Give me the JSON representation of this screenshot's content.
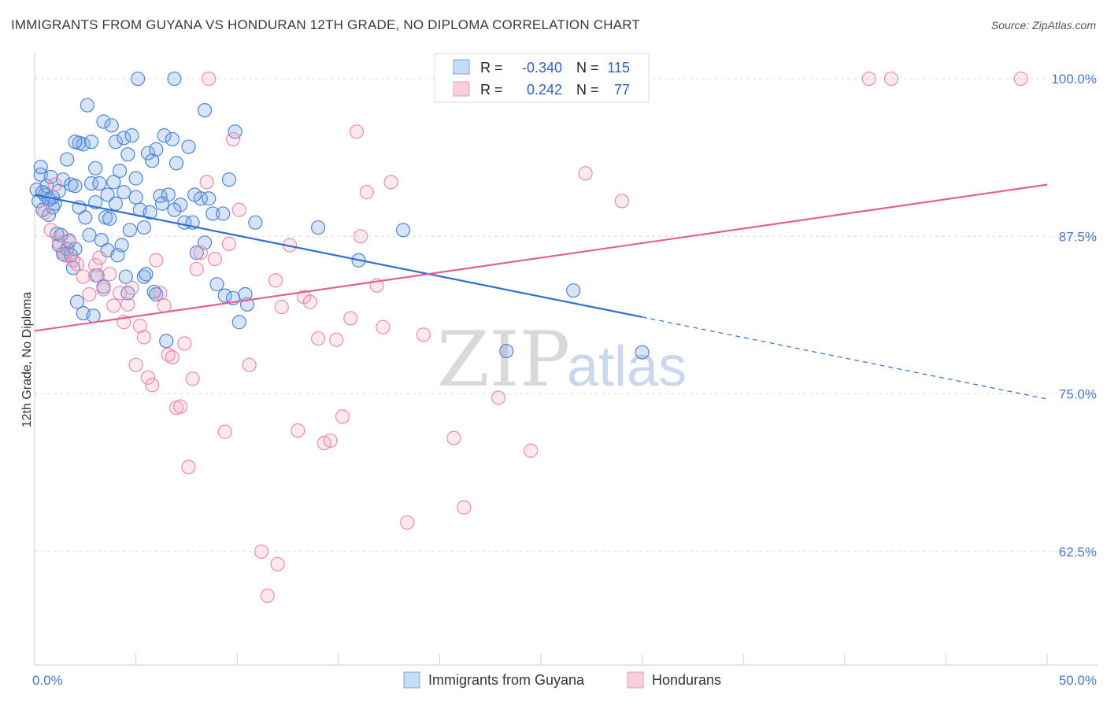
{
  "title": "IMMIGRANTS FROM GUYANA VS HONDURAN 12TH GRADE, NO DIPLOMA CORRELATION CHART",
  "source": "Source: ZipAtlas.com",
  "watermark": {
    "zip": "ZIP",
    "atlas": "atlas"
  },
  "legend": {
    "rows": [
      {
        "r_label": "R =",
        "r_value": "-0.340",
        "n_label": "N =",
        "n_value": "115",
        "color": "#7aa6e0"
      },
      {
        "r_label": "R =",
        "r_value": "0.242",
        "n_label": "N =",
        "n_value": "77",
        "color": "#f09ab8"
      }
    ]
  },
  "bottom_legend": [
    {
      "label": "Immigrants from Guyana",
      "color": "#7aa6e0"
    },
    {
      "label": "Hondurans",
      "color": "#f09ab8"
    }
  ],
  "chart_data": {
    "type": "scatter",
    "title": "IMMIGRANTS FROM GUYANA VS HONDURAN 12TH GRADE, NO DIPLOMA CORRELATION CHART",
    "xlabel": "",
    "ylabel": "12th Grade, No Diploma",
    "xlim": [
      0,
      50
    ],
    "ylim": [
      53.5,
      102
    ],
    "x_tick_labels": [
      {
        "value": 0,
        "label": "0.0%"
      },
      {
        "value": 50,
        "label": "50.0%"
      }
    ],
    "y_tick_labels": [
      {
        "value": 100,
        "label": "100.0%"
      },
      {
        "value": 87.5,
        "label": "87.5%"
      },
      {
        "value": 75,
        "label": "75.0%"
      },
      {
        "value": 62.5,
        "label": "62.5%"
      }
    ],
    "grid": true,
    "legend_position": "top-center",
    "series": [
      {
        "name": "Immigrants from Guyana",
        "color": "#7aa6e0",
        "trend": {
          "x0": 0,
          "y0": 90.8,
          "x1": 30,
          "y1": 81.1,
          "dashed_to_x": 50,
          "dashed_to_y": 74.6,
          "color": "#2f6fcf"
        },
        "points": [
          [
            0.1,
            91.2
          ],
          [
            0.2,
            90.3
          ],
          [
            0.3,
            92.4
          ],
          [
            0.4,
            89.6
          ],
          [
            0.5,
            90.8
          ],
          [
            0.6,
            91.5
          ],
          [
            0.7,
            89.2
          ],
          [
            0.8,
            92.2
          ],
          [
            0.9,
            89.8
          ],
          [
            1.0,
            90.1
          ],
          [
            1.1,
            87.7
          ],
          [
            1.2,
            86.8
          ],
          [
            1.3,
            87.6
          ],
          [
            1.4,
            86.1
          ],
          [
            1.5,
            86.0
          ],
          [
            1.6,
            86.5
          ],
          [
            1.7,
            87.1
          ],
          [
            1.8,
            86.0
          ],
          [
            1.9,
            85.0
          ],
          [
            2.0,
            86.5
          ],
          [
            0.3,
            93.0
          ],
          [
            0.4,
            91.0
          ],
          [
            0.7,
            90.4
          ],
          [
            0.9,
            90.6
          ],
          [
            1.2,
            91.1
          ],
          [
            1.4,
            92.0
          ],
          [
            1.6,
            93.6
          ],
          [
            1.8,
            91.6
          ],
          [
            2.0,
            91.5
          ],
          [
            2.2,
            94.9
          ],
          [
            2.4,
            94.8
          ],
          [
            2.6,
            97.9
          ],
          [
            2.8,
            91.7
          ],
          [
            3.0,
            92.9
          ],
          [
            3.2,
            91.7
          ],
          [
            3.4,
            96.6
          ],
          [
            3.6,
            90.8
          ],
          [
            3.8,
            96.3
          ],
          [
            4.0,
            95.0
          ],
          [
            4.2,
            92.7
          ],
          [
            4.4,
            95.3
          ],
          [
            4.6,
            94.0
          ],
          [
            4.8,
            95.5
          ],
          [
            5.0,
            92.1
          ],
          [
            5.2,
            89.6
          ],
          [
            5.4,
            88.2
          ],
          [
            5.6,
            94.1
          ],
          [
            5.8,
            93.5
          ],
          [
            6.0,
            94.4
          ],
          [
            6.2,
            90.7
          ],
          [
            6.4,
            95.5
          ],
          [
            6.6,
            90.8
          ],
          [
            6.8,
            95.2
          ],
          [
            7.0,
            93.3
          ],
          [
            7.2,
            90.0
          ],
          [
            7.4,
            88.6
          ],
          [
            7.6,
            94.6
          ],
          [
            7.8,
            88.6
          ],
          [
            8.0,
            86.2
          ],
          [
            8.2,
            90.5
          ],
          [
            8.4,
            97.5
          ],
          [
            8.8,
            89.3
          ],
          [
            9.0,
            83.7
          ],
          [
            9.4,
            82.8
          ],
          [
            9.6,
            92.0
          ],
          [
            9.9,
            95.8
          ],
          [
            10.1,
            80.7
          ],
          [
            10.5,
            82.1
          ],
          [
            10.9,
            88.6
          ],
          [
            2.2,
            89.8
          ],
          [
            2.5,
            89.0
          ],
          [
            2.7,
            87.6
          ],
          [
            3.0,
            90.2
          ],
          [
            3.3,
            87.2
          ],
          [
            3.5,
            89.0
          ],
          [
            3.7,
            88.9
          ],
          [
            4.0,
            90.1
          ],
          [
            4.3,
            86.8
          ],
          [
            4.5,
            84.3
          ],
          [
            4.7,
            88.0
          ],
          [
            5.1,
            100.0
          ],
          [
            5.4,
            84.3
          ],
          [
            5.9,
            83.1
          ],
          [
            6.5,
            79.2
          ],
          [
            6.9,
            100.0
          ],
          [
            8.4,
            87.0
          ],
          [
            8.6,
            90.5
          ],
          [
            9.3,
            89.3
          ],
          [
            9.8,
            82.6
          ],
          [
            10.4,
            82.9
          ],
          [
            2.1,
            82.3
          ],
          [
            2.4,
            81.4
          ],
          [
            2.9,
            81.2
          ],
          [
            3.1,
            84.4
          ],
          [
            3.4,
            83.5
          ],
          [
            3.6,
            86.4
          ],
          [
            4.1,
            86.0
          ],
          [
            4.6,
            83.0
          ],
          [
            5.5,
            84.5
          ],
          [
            6.0,
            82.9
          ],
          [
            2.0,
            95.0
          ],
          [
            2.8,
            95.0
          ],
          [
            3.9,
            91.8
          ],
          [
            4.4,
            91.0
          ],
          [
            5.0,
            90.6
          ],
          [
            5.7,
            89.4
          ],
          [
            6.3,
            90.1
          ],
          [
            6.9,
            89.6
          ],
          [
            7.9,
            90.8
          ],
          [
            14.0,
            88.2
          ],
          [
            16.0,
            85.6
          ],
          [
            18.2,
            88.0
          ],
          [
            23.3,
            78.4
          ],
          [
            26.6,
            83.2
          ],
          [
            30.0,
            78.3
          ]
        ]
      },
      {
        "name": "Hondurans",
        "color": "#f09ab8",
        "trend": {
          "x0": 0,
          "y0": 80.0,
          "x1": 50,
          "y1": 91.6,
          "color": "#e4608f"
        },
        "points": [
          [
            0.5,
            89.4
          ],
          [
            0.8,
            88.0
          ],
          [
            1.0,
            91.6
          ],
          [
            1.2,
            87.0
          ],
          [
            1.5,
            86.0
          ],
          [
            1.7,
            87.2
          ],
          [
            1.9,
            85.6
          ],
          [
            2.1,
            85.3
          ],
          [
            2.4,
            84.3
          ],
          [
            2.7,
            82.9
          ],
          [
            3.0,
            85.2
          ],
          [
            3.2,
            85.8
          ],
          [
            3.4,
            83.3
          ],
          [
            3.7,
            84.5
          ],
          [
            3.9,
            82.0
          ],
          [
            4.2,
            83.0
          ],
          [
            4.4,
            80.7
          ],
          [
            4.6,
            82.1
          ],
          [
            4.8,
            83.4
          ],
          [
            5.0,
            77.3
          ],
          [
            5.2,
            80.4
          ],
          [
            5.4,
            79.5
          ],
          [
            5.6,
            76.3
          ],
          [
            5.8,
            75.7
          ],
          [
            6.0,
            85.6
          ],
          [
            6.2,
            83.0
          ],
          [
            6.4,
            82.0
          ],
          [
            6.6,
            78.1
          ],
          [
            6.8,
            77.9
          ],
          [
            7.0,
            73.9
          ],
          [
            7.2,
            74.0
          ],
          [
            7.4,
            79.0
          ],
          [
            7.6,
            69.2
          ],
          [
            7.8,
            76.2
          ],
          [
            8.0,
            84.9
          ],
          [
            8.2,
            86.2
          ],
          [
            8.5,
            91.8
          ],
          [
            8.9,
            85.7
          ],
          [
            9.4,
            72.0
          ],
          [
            9.6,
            86.9
          ],
          [
            9.8,
            95.2
          ],
          [
            10.1,
            89.6
          ],
          [
            10.6,
            77.3
          ],
          [
            11.2,
            62.5
          ],
          [
            11.5,
            59.0
          ],
          [
            11.9,
            84.0
          ],
          [
            12.2,
            81.9
          ],
          [
            12.6,
            86.8
          ],
          [
            13.0,
            72.1
          ],
          [
            13.3,
            82.7
          ],
          [
            13.6,
            82.3
          ],
          [
            14.0,
            79.4
          ],
          [
            14.3,
            71.1
          ],
          [
            14.6,
            71.3
          ],
          [
            14.9,
            79.3
          ],
          [
            15.2,
            73.2
          ],
          [
            15.6,
            81.0
          ],
          [
            15.9,
            95.8
          ],
          [
            16.1,
            87.5
          ],
          [
            16.4,
            91.0
          ],
          [
            16.9,
            83.6
          ],
          [
            17.2,
            80.3
          ],
          [
            17.6,
            91.8
          ],
          [
            18.4,
            64.8
          ],
          [
            19.2,
            79.7
          ],
          [
            20.7,
            71.5
          ],
          [
            21.2,
            66.0
          ],
          [
            22.9,
            74.7
          ],
          [
            24.5,
            70.5
          ],
          [
            27.2,
            92.5
          ],
          [
            29.0,
            90.3
          ],
          [
            8.6,
            100.0
          ],
          [
            12.0,
            61.5
          ],
          [
            41.2,
            100.0
          ],
          [
            42.3,
            100.0
          ],
          [
            48.7,
            100.0
          ],
          [
            3.0,
            84.4
          ]
        ]
      }
    ]
  }
}
